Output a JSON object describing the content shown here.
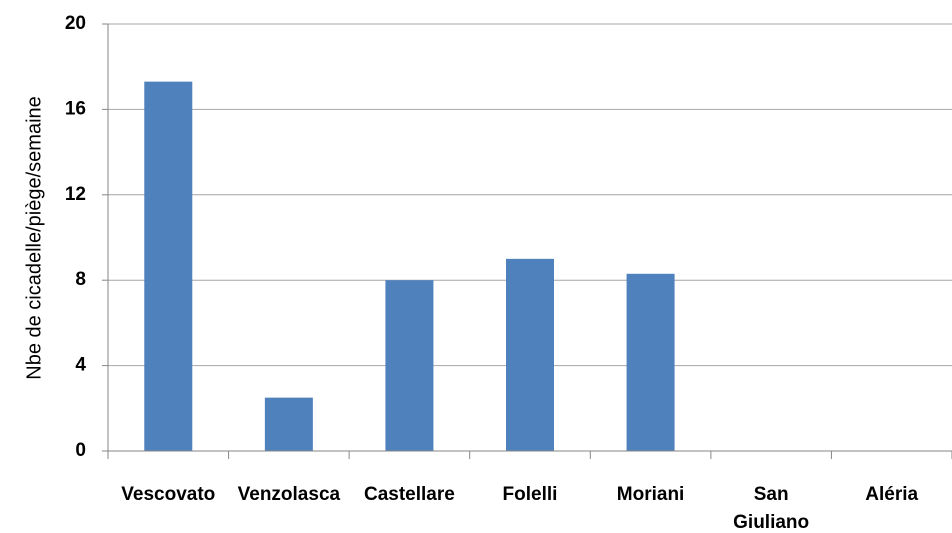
{
  "chart_data": {
    "type": "bar",
    "categories": [
      "Vescovato",
      "Venzolasca",
      "Castellare",
      "Folelli",
      "Moriani",
      "San Giuliano",
      "Aléria"
    ],
    "category_lines": [
      [
        "Vescovato"
      ],
      [
        "Venzolasca"
      ],
      [
        "Castellare"
      ],
      [
        "Folelli"
      ],
      [
        "Moriani"
      ],
      [
        "San",
        "Giuliano"
      ],
      [
        "Aléria"
      ]
    ],
    "values": [
      17.3,
      2.5,
      8.0,
      9.0,
      8.3,
      0,
      0
    ],
    "title": "",
    "xlabel": "",
    "ylabel": "Nbe de cicadelle/piège/semaine",
    "ylim": [
      0,
      20
    ],
    "yticks": [
      0,
      4,
      8,
      12,
      16,
      20
    ],
    "grid": true,
    "legend": "none",
    "colors": {
      "bar": "#4F81BD",
      "grid": "#A6A6A6",
      "axis": "#868686",
      "text": "#000000"
    }
  }
}
